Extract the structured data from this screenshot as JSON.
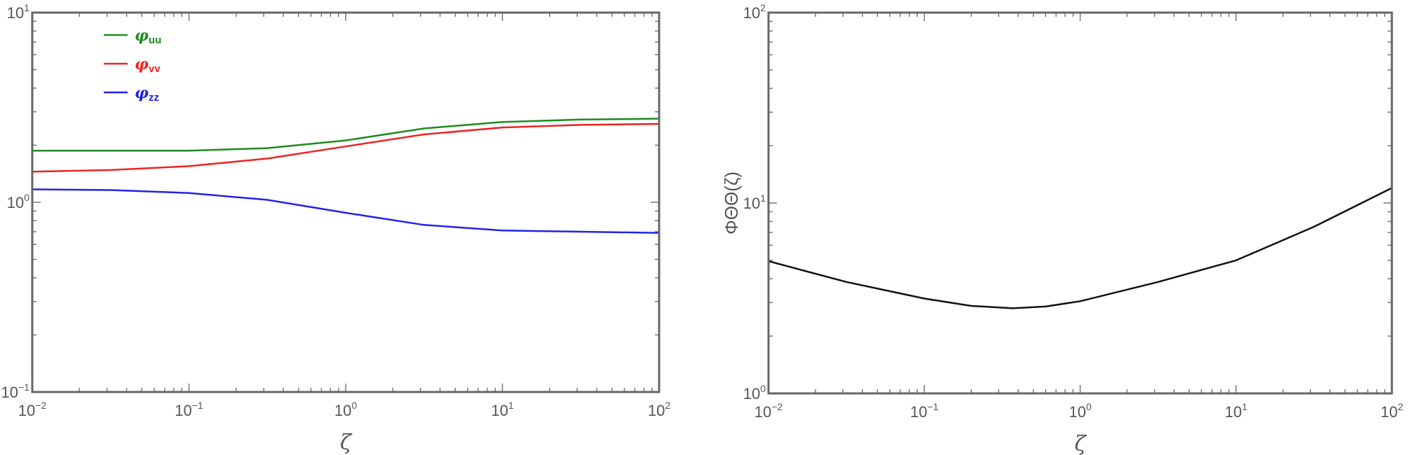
{
  "chart_data": [
    {
      "type": "line",
      "xscale": "log",
      "yscale": "log",
      "xlim": [
        0.01,
        100
      ],
      "ylim": [
        0.1,
        10
      ],
      "xlabel": "ζ",
      "ylabel": "",
      "x_ticks": [
        {
          "base": "10",
          "exp": "−2"
        },
        {
          "base": "10",
          "exp": "−1"
        },
        {
          "base": "10",
          "exp": "0"
        },
        {
          "base": "10",
          "exp": "1"
        },
        {
          "base": "10",
          "exp": "2"
        }
      ],
      "y_ticks": [
        {
          "base": "10",
          "exp": "−1"
        },
        {
          "base": "10",
          "exp": "0"
        },
        {
          "base": "10",
          "exp": "1"
        }
      ],
      "legend_position": "top-left",
      "series": [
        {
          "name": "φ",
          "subscript": "uu",
          "color": "#1f8a1f",
          "x": [
            0.01,
            0.0316,
            0.1,
            0.316,
            1,
            3.16,
            10,
            31.6,
            100
          ],
          "y": [
            1.87,
            1.87,
            1.87,
            1.93,
            2.12,
            2.45,
            2.65,
            2.73,
            2.76
          ]
        },
        {
          "name": "φ",
          "subscript": "vv",
          "color": "#ee2222",
          "x": [
            0.01,
            0.0316,
            0.1,
            0.316,
            1,
            3.16,
            10,
            31.6,
            100
          ],
          "y": [
            1.45,
            1.48,
            1.55,
            1.7,
            1.97,
            2.28,
            2.48,
            2.56,
            2.59
          ]
        },
        {
          "name": "φ",
          "subscript": "zz",
          "color": "#2222ee",
          "x": [
            0.01,
            0.0316,
            0.1,
            0.316,
            1,
            3.16,
            10,
            31.6,
            100
          ],
          "y": [
            1.17,
            1.16,
            1.12,
            1.03,
            0.88,
            0.76,
            0.71,
            0.7,
            0.69
          ]
        }
      ]
    },
    {
      "type": "line",
      "xscale": "log",
      "yscale": "log",
      "xlim": [
        0.01,
        100
      ],
      "ylim": [
        1,
        100
      ],
      "xlabel": "ζ",
      "ylabel": "ΦΘΘ(ζ)",
      "x_ticks": [
        {
          "base": "10",
          "exp": "−2"
        },
        {
          "base": "10",
          "exp": "−1"
        },
        {
          "base": "10",
          "exp": "0"
        },
        {
          "base": "10",
          "exp": "1"
        },
        {
          "base": "10",
          "exp": "2"
        }
      ],
      "y_ticks": [
        {
          "base": "10",
          "exp": "0"
        },
        {
          "base": "10",
          "exp": "1"
        },
        {
          "base": "10",
          "exp": "2"
        }
      ],
      "series": [
        {
          "color": "#111111",
          "x": [
            0.01,
            0.0316,
            0.1,
            0.2,
            0.37,
            0.6,
            1,
            3.16,
            10,
            31.6,
            100
          ],
          "y": [
            4.95,
            3.85,
            3.15,
            2.88,
            2.8,
            2.86,
            3.05,
            3.85,
            5.0,
            7.5,
            12.0
          ]
        }
      ]
    }
  ]
}
